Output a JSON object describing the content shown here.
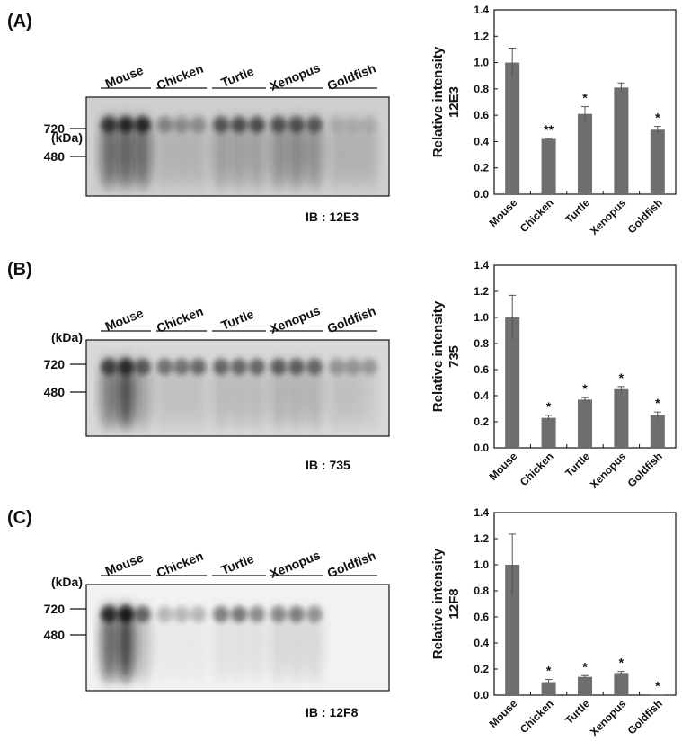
{
  "panels": [
    {
      "letter": "(A)",
      "kda_label": "(kDa)",
      "markers": [
        "720",
        "480"
      ],
      "ib_label": "IB : 12E3",
      "groups": [
        "Mouse",
        "Chicken",
        "Turtle",
        "Xenopus",
        "Goldfish"
      ]
    },
    {
      "letter": "(B)",
      "kda_label": "(kDa)",
      "markers": [
        "720",
        "480"
      ],
      "ib_label": "IB : 735",
      "groups": [
        "Mouse",
        "Chicken",
        "Turtle",
        "Xenopus",
        "Goldfish"
      ]
    },
    {
      "letter": "(C)",
      "kda_label": "(kDa)",
      "markers": [
        "720",
        "480"
      ],
      "ib_label": "IB : 12F8",
      "groups": [
        "Mouse",
        "Chicken",
        "Turtle",
        "Xenopus",
        "Goldfish"
      ]
    }
  ],
  "chart_data": [
    {
      "type": "bar",
      "ylabel": [
        "Relative intensity",
        "12E3"
      ],
      "categories": [
        "Mouse",
        "Chicken",
        "Turtle",
        "Xenopus",
        "Goldfish"
      ],
      "values": [
        1.0,
        0.42,
        0.61,
        0.81,
        0.49
      ],
      "errors": [
        0.11,
        0.005,
        0.055,
        0.035,
        0.025
      ],
      "significance": [
        "",
        "**",
        "*",
        "",
        "*"
      ],
      "ylim": [
        0,
        1.4
      ],
      "yticks": [
        "0.0",
        "0.2",
        "0.4",
        "0.6",
        "0.8",
        "1.0",
        "1.2",
        "1.4"
      ],
      "bar_color": "#6e6e6e"
    },
    {
      "type": "bar",
      "ylabel": [
        "Relative intensity",
        "735"
      ],
      "categories": [
        "Mouse",
        "Chicken",
        "Turtle",
        "Xenopus",
        "Goldfish"
      ],
      "values": [
        1.0,
        0.23,
        0.37,
        0.45,
        0.25
      ],
      "errors": [
        0.17,
        0.02,
        0.015,
        0.02,
        0.025
      ],
      "significance": [
        "",
        "*",
        "*",
        "*",
        "*"
      ],
      "ylim": [
        0,
        1.4
      ],
      "yticks": [
        "0.0",
        "0.2",
        "0.4",
        "0.6",
        "0.8",
        "1.0",
        "1.2",
        "1.4"
      ],
      "bar_color": "#6e6e6e"
    },
    {
      "type": "bar",
      "ylabel": [
        "Relative intensity",
        "12F8"
      ],
      "categories": [
        "Mouse",
        "Chicken",
        "Turtle",
        "Xenopus",
        "Goldfish"
      ],
      "values": [
        1.0,
        0.1,
        0.14,
        0.17,
        0.005
      ],
      "errors": [
        0.235,
        0.02,
        0.01,
        0.012,
        0.0
      ],
      "significance": [
        "",
        "*",
        "*",
        "*",
        "*"
      ],
      "ylim": [
        0,
        1.4
      ],
      "yticks": [
        "0.0",
        "0.2",
        "0.4",
        "0.6",
        "0.8",
        "1.0",
        "1.2",
        "1.4"
      ],
      "bar_color": "#6e6e6e"
    }
  ]
}
